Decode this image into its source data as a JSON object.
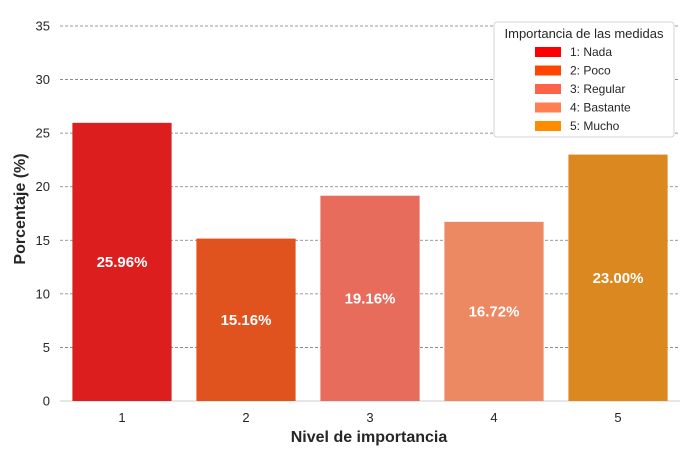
{
  "chart_data": {
    "type": "bar",
    "categories": [
      "1",
      "2",
      "3",
      "4",
      "5"
    ],
    "values": [
      25.96,
      15.16,
      19.16,
      16.72,
      23.0
    ],
    "data_labels": [
      "25.96%",
      "15.16%",
      "19.16%",
      "16.72%",
      "23.00%"
    ],
    "colors": [
      "#dd1e1f",
      "#e0521e",
      "#e86c5c",
      "#ec8862",
      "#dc8820"
    ],
    "title": "",
    "xlabel": "Nivel de importancia",
    "ylabel": "Porcentaje (%)",
    "ylim": [
      0,
      35
    ],
    "yticks": [
      0,
      5,
      10,
      15,
      20,
      25,
      30,
      35
    ],
    "grid": "horizontal dashed",
    "legend": {
      "title": "Importancia de las medidas",
      "placement": "top-right",
      "entries": [
        {
          "label": "1: Nada",
          "color": "#ff0000"
        },
        {
          "label": "2: Poco",
          "color": "#ff4500"
        },
        {
          "label": "3: Regular",
          "color": "#ff6347"
        },
        {
          "label": "4: Bastante",
          "color": "#ff7f50"
        },
        {
          "label": "5: Mucho",
          "color": "#ff8c00"
        }
      ]
    }
  }
}
